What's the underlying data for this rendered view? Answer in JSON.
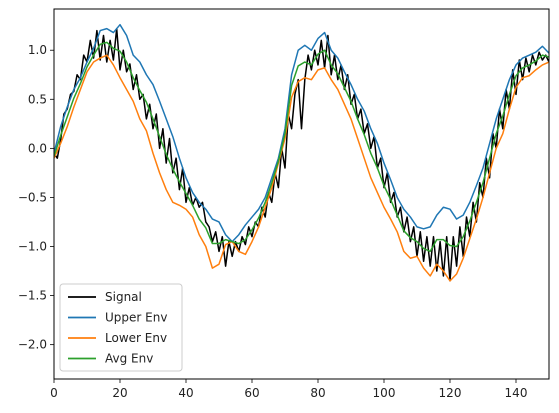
{
  "chart_data": {
    "type": "line",
    "title": "",
    "xlabel": "",
    "ylabel": "",
    "xlim": [
      0,
      150
    ],
    "ylim": [
      -2.35,
      1.42
    ],
    "xticks": [
      0,
      20,
      40,
      60,
      80,
      100,
      120,
      140
    ],
    "yticks": [
      -2.0,
      -1.5,
      -1.0,
      -0.5,
      0.0,
      0.5,
      1.0
    ],
    "xtick_labels": [
      "0",
      "20",
      "40",
      "60",
      "80",
      "100",
      "120",
      "140"
    ],
    "ytick_labels": [
      "−2.0",
      "−1.5",
      "−1.0",
      "−0.5",
      "0.0",
      "0.5",
      "1.0"
    ],
    "grid": false,
    "legend_position": "lower-left",
    "series": [
      {
        "name": "Signal",
        "color": "#000000",
        "x": [
          0,
          1,
          2,
          3,
          4,
          5,
          6,
          7,
          8,
          9,
          10,
          11,
          12,
          13,
          14,
          15,
          16,
          17,
          18,
          19,
          20,
          21,
          22,
          23,
          24,
          25,
          26,
          27,
          28,
          29,
          30,
          31,
          32,
          33,
          34,
          35,
          36,
          37,
          38,
          39,
          40,
          41,
          42,
          43,
          44,
          45,
          46,
          47,
          48,
          49,
          50,
          51,
          52,
          53,
          54,
          55,
          56,
          57,
          58,
          59,
          60,
          61,
          62,
          63,
          64,
          65,
          66,
          67,
          68,
          69,
          70,
          71,
          72,
          73,
          74,
          75,
          76,
          77,
          78,
          79,
          80,
          81,
          82,
          83,
          84,
          85,
          86,
          87,
          88,
          89,
          90,
          91,
          92,
          93,
          94,
          95,
          96,
          97,
          98,
          99,
          100,
          101,
          102,
          103,
          104,
          105,
          106,
          107,
          108,
          109,
          110,
          111,
          112,
          113,
          114,
          115,
          116,
          117,
          118,
          119,
          120,
          121,
          122,
          123,
          124,
          125,
          126,
          127,
          128,
          129,
          130,
          131,
          132,
          133,
          134,
          135,
          136,
          137,
          138,
          139,
          140,
          141,
          142,
          143,
          144,
          145,
          146,
          147,
          148,
          149,
          150
        ],
        "y": [
          -0.05,
          -0.1,
          0.08,
          0.35,
          0.4,
          0.55,
          0.58,
          0.75,
          0.7,
          0.95,
          0.88,
          1.1,
          0.92,
          1.2,
          0.9,
          1.15,
          0.88,
          1.1,
          0.9,
          1.22,
          0.8,
          1.0,
          0.78,
          0.86,
          0.6,
          0.75,
          0.5,
          0.55,
          0.3,
          0.45,
          0.2,
          0.35,
          0.0,
          0.2,
          -0.15,
          0.1,
          -0.25,
          -0.1,
          -0.42,
          -0.2,
          -0.55,
          -0.4,
          -0.58,
          -0.5,
          -0.6,
          -0.55,
          -0.75,
          -0.8,
          -0.95,
          -0.85,
          -1.05,
          -0.9,
          -1.2,
          -0.95,
          -1.1,
          -0.95,
          -1.05,
          -0.9,
          -0.98,
          -0.8,
          -0.9,
          -0.75,
          -0.8,
          -0.6,
          -0.7,
          -0.45,
          -0.55,
          -0.25,
          -0.4,
          0.0,
          -0.2,
          0.35,
          0.2,
          0.55,
          0.7,
          0.2,
          0.7,
          0.95,
          0.8,
          1.0,
          0.85,
          1.1,
          0.82,
          1.15,
          0.75,
          0.95,
          0.7,
          0.85,
          0.6,
          0.75,
          0.45,
          0.55,
          0.3,
          0.4,
          0.15,
          0.25,
          0.0,
          0.12,
          -0.2,
          -0.1,
          -0.4,
          -0.25,
          -0.55,
          -0.45,
          -0.7,
          -0.6,
          -0.85,
          -0.7,
          -0.95,
          -0.8,
          -1.1,
          -0.85,
          -1.15,
          -0.9,
          -1.2,
          -0.9,
          -1.25,
          -0.95,
          -1.3,
          -0.9,
          -1.35,
          -0.9,
          -1.2,
          -0.8,
          -1.1,
          -0.7,
          -0.9,
          -0.55,
          -0.75,
          -0.35,
          -0.5,
          -0.1,
          -0.3,
          0.15,
          0.0,
          0.4,
          0.2,
          0.6,
          0.4,
          0.8,
          0.55,
          0.9,
          0.7,
          0.92,
          0.78,
          0.95,
          0.85,
          0.98,
          0.9,
          0.95,
          0.88
        ]
      },
      {
        "name": "Upper Env",
        "color": "#1f77b4",
        "x": [
          0,
          2,
          4,
          6,
          8,
          10,
          12,
          14,
          16,
          18,
          20,
          22,
          24,
          26,
          28,
          30,
          32,
          34,
          36,
          38,
          40,
          42,
          44,
          46,
          48,
          50,
          52,
          54,
          56,
          58,
          60,
          62,
          64,
          66,
          68,
          70,
          72,
          74,
          76,
          78,
          80,
          82,
          84,
          86,
          88,
          90,
          92,
          94,
          96,
          98,
          100,
          102,
          104,
          106,
          108,
          110,
          112,
          114,
          116,
          118,
          120,
          122,
          124,
          126,
          128,
          130,
          132,
          134,
          136,
          138,
          140,
          142,
          144,
          146,
          148,
          150
        ],
        "y": [
          -0.05,
          0.22,
          0.42,
          0.6,
          0.72,
          0.88,
          1.02,
          1.2,
          1.22,
          1.18,
          1.26,
          1.15,
          0.95,
          0.88,
          0.75,
          0.65,
          0.48,
          0.3,
          0.12,
          -0.1,
          -0.3,
          -0.45,
          -0.55,
          -0.62,
          -0.72,
          -0.75,
          -0.88,
          -0.95,
          -0.88,
          -0.78,
          -0.7,
          -0.62,
          -0.5,
          -0.3,
          -0.1,
          0.2,
          0.75,
          1.0,
          1.05,
          1.0,
          1.12,
          1.18,
          1.0,
          0.92,
          0.78,
          0.65,
          0.5,
          0.38,
          0.2,
          0.05,
          -0.15,
          -0.32,
          -0.5,
          -0.62,
          -0.7,
          -0.8,
          -0.82,
          -0.8,
          -0.68,
          -0.6,
          -0.62,
          -0.72,
          -0.68,
          -0.55,
          -0.38,
          -0.2,
          0.05,
          0.3,
          0.5,
          0.7,
          0.85,
          0.92,
          0.95,
          0.98,
          1.04,
          0.97
        ]
      },
      {
        "name": "Lower Env",
        "color": "#ff7f0e",
        "x": [
          0,
          2,
          4,
          6,
          8,
          10,
          12,
          14,
          16,
          18,
          20,
          22,
          24,
          26,
          28,
          30,
          32,
          34,
          36,
          38,
          40,
          42,
          44,
          46,
          48,
          50,
          52,
          54,
          56,
          58,
          60,
          62,
          64,
          66,
          68,
          70,
          72,
          74,
          76,
          78,
          80,
          82,
          84,
          86,
          88,
          90,
          92,
          94,
          96,
          98,
          100,
          102,
          104,
          106,
          108,
          110,
          112,
          114,
          116,
          118,
          120,
          122,
          124,
          126,
          128,
          130,
          132,
          134,
          136,
          138,
          140,
          142,
          144,
          146,
          148,
          150
        ],
        "y": [
          -0.1,
          0.05,
          0.22,
          0.42,
          0.6,
          0.78,
          0.88,
          0.92,
          0.95,
          0.85,
          0.72,
          0.6,
          0.48,
          0.3,
          0.18,
          -0.05,
          -0.25,
          -0.42,
          -0.55,
          -0.58,
          -0.62,
          -0.7,
          -0.88,
          -1.0,
          -1.22,
          -1.18,
          -0.98,
          -0.95,
          -1.05,
          -1.08,
          -0.95,
          -0.8,
          -0.6,
          -0.4,
          -0.15,
          0.1,
          0.52,
          0.68,
          0.72,
          0.7,
          0.8,
          0.82,
          0.7,
          0.6,
          0.45,
          0.3,
          0.1,
          -0.1,
          -0.3,
          -0.45,
          -0.6,
          -0.72,
          -0.85,
          -1.05,
          -1.12,
          -1.1,
          -1.22,
          -1.3,
          -1.18,
          -1.25,
          -1.35,
          -1.28,
          -1.12,
          -0.92,
          -0.72,
          -0.5,
          -0.25,
          0.0,
          0.15,
          0.4,
          0.62,
          0.72,
          0.74,
          0.8,
          0.85,
          0.88
        ]
      },
      {
        "name": "Avg Env",
        "color": "#2ca02c",
        "x": [
          0,
          2,
          4,
          6,
          8,
          10,
          12,
          14,
          16,
          18,
          20,
          22,
          24,
          26,
          28,
          30,
          32,
          34,
          36,
          38,
          40,
          42,
          44,
          46,
          48,
          50,
          52,
          54,
          56,
          58,
          60,
          62,
          64,
          66,
          68,
          70,
          72,
          74,
          76,
          78,
          80,
          82,
          84,
          86,
          88,
          90,
          92,
          94,
          96,
          98,
          100,
          102,
          104,
          106,
          108,
          110,
          112,
          114,
          116,
          118,
          120,
          122,
          124,
          126,
          128,
          130,
          132,
          134,
          136,
          138,
          140,
          142,
          144,
          146,
          148,
          150
        ],
        "y": [
          -0.08,
          0.13,
          0.32,
          0.51,
          0.66,
          0.83,
          0.95,
          1.06,
          1.08,
          1.02,
          0.99,
          0.88,
          0.72,
          0.59,
          0.47,
          0.3,
          0.12,
          -0.06,
          -0.21,
          -0.34,
          -0.46,
          -0.58,
          -0.72,
          -0.81,
          -0.97,
          -0.97,
          -0.93,
          -0.95,
          -0.97,
          -0.93,
          -0.83,
          -0.71,
          -0.55,
          -0.35,
          -0.13,
          0.15,
          0.64,
          0.84,
          0.88,
          0.85,
          0.96,
          1.0,
          0.85,
          0.76,
          0.62,
          0.48,
          0.3,
          0.14,
          -0.05,
          -0.2,
          -0.38,
          -0.52,
          -0.68,
          -0.84,
          -0.91,
          -0.95,
          -1.02,
          -1.05,
          -0.93,
          -0.93,
          -0.99,
          -1.0,
          -0.9,
          -0.74,
          -0.55,
          -0.35,
          -0.1,
          0.15,
          0.33,
          0.55,
          0.74,
          0.82,
          0.85,
          0.89,
          0.95,
          0.93
        ]
      }
    ]
  }
}
